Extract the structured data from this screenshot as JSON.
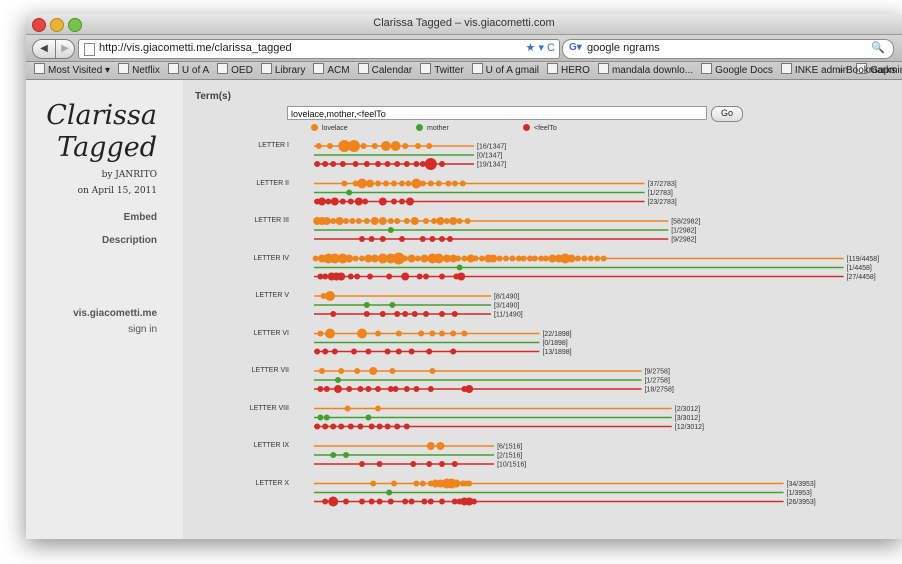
{
  "window": {
    "title": "Clarissa Tagged – vis.giacometti.com"
  },
  "toolbar": {
    "url": "http://vis.giacometti.me/clarissa_tagged",
    "search_engine": "Google",
    "search_query": "google ngrams",
    "back_label": "◀",
    "forward_label": "▶"
  },
  "bookmarks": [
    "Most Visited ▾",
    "Netflix",
    "U of A",
    "OED",
    "Library",
    "ACM",
    "Calendar",
    "Twitter",
    "U of A gmail",
    "HERO",
    "mandala downlo...",
    "Google Docs",
    "INKE admin",
    "Gapminder"
  ],
  "bookmarks_more": "» Bookmarks",
  "sidebar": {
    "title_line1": "Clarissa",
    "title_line2": "Tagged",
    "byline": "by JANRITO",
    "date": "on April 15, 2011",
    "embed": "Embed",
    "description": "Description",
    "site": "vis.giacometti.me",
    "signin": "sign in"
  },
  "search": {
    "label": "Term(s)",
    "value": "lovelace,mother,<feelTo",
    "go": "Go"
  },
  "colors": {
    "lovelace": "#f0841c",
    "mother": "#44a02e",
    "feelTo": "#d22b28"
  },
  "chart_data": {
    "type": "scatter",
    "legend": [
      "lovelace",
      "mother",
      "<feelTo"
    ],
    "letters": [
      {
        "label": "LETTER I",
        "total": 1347,
        "counts": {
          "lovelace": 16,
          "mother": 0,
          "feelTo": 19
        },
        "lovelace": [
          [
            0.03,
            3
          ],
          [
            0.1,
            3
          ],
          [
            0.19,
            6
          ],
          [
            0.25,
            6
          ],
          [
            0.31,
            3
          ],
          [
            0.38,
            3
          ],
          [
            0.45,
            5
          ],
          [
            0.51,
            5
          ],
          [
            0.57,
            3
          ],
          [
            0.65,
            3
          ],
          [
            0.72,
            3
          ]
        ],
        "mother": [],
        "feelTo": [
          [
            0.02,
            3
          ],
          [
            0.07,
            3
          ],
          [
            0.12,
            3
          ],
          [
            0.18,
            3
          ],
          [
            0.26,
            3
          ],
          [
            0.33,
            3
          ],
          [
            0.4,
            3
          ],
          [
            0.46,
            3
          ],
          [
            0.52,
            3
          ],
          [
            0.58,
            3
          ],
          [
            0.64,
            3
          ],
          [
            0.68,
            3
          ],
          [
            0.73,
            6
          ],
          [
            0.8,
            3
          ]
        ]
      },
      {
        "label": "LETTER II",
        "total": 2783,
        "counts": {
          "lovelace": 37,
          "mother": 1,
          "feelTo": 23
        },
        "lovelace": [
          [
            0.19,
            3
          ],
          [
            0.26,
            3
          ],
          [
            0.3,
            5
          ],
          [
            0.35,
            4
          ],
          [
            0.4,
            3
          ],
          [
            0.45,
            3
          ],
          [
            0.5,
            3
          ],
          [
            0.55,
            3
          ],
          [
            0.59,
            3
          ],
          [
            0.64,
            5
          ],
          [
            0.68,
            3
          ],
          [
            0.73,
            3
          ],
          [
            0.78,
            3
          ],
          [
            0.84,
            3
          ],
          [
            0.88,
            3
          ],
          [
            0.93,
            3
          ]
        ],
        "mother": [
          [
            0.22,
            3
          ]
        ],
        "feelTo": [
          [
            0.02,
            3
          ],
          [
            0.05,
            4
          ],
          [
            0.09,
            3
          ],
          [
            0.13,
            4
          ],
          [
            0.18,
            3
          ],
          [
            0.23,
            3
          ],
          [
            0.28,
            4
          ],
          [
            0.32,
            3
          ],
          [
            0.43,
            4
          ],
          [
            0.5,
            3
          ],
          [
            0.55,
            3
          ],
          [
            0.6,
            4
          ]
        ]
      },
      {
        "label": "LETTER III",
        "total": 2982,
        "counts": {
          "lovelace": 58,
          "mother": 1,
          "feelTo": 9
        },
        "lovelace": [
          [
            0.02,
            4
          ],
          [
            0.05,
            4
          ],
          [
            0.08,
            4
          ],
          [
            0.12,
            3
          ],
          [
            0.16,
            4
          ],
          [
            0.2,
            3
          ],
          [
            0.24,
            3
          ],
          [
            0.28,
            3
          ],
          [
            0.33,
            3
          ],
          [
            0.38,
            4
          ],
          [
            0.43,
            4
          ],
          [
            0.48,
            3
          ],
          [
            0.52,
            3
          ],
          [
            0.58,
            3
          ],
          [
            0.63,
            4
          ],
          [
            0.7,
            3
          ],
          [
            0.75,
            3
          ],
          [
            0.79,
            4
          ],
          [
            0.83,
            3
          ],
          [
            0.87,
            4
          ],
          [
            0.91,
            3
          ],
          [
            0.96,
            3
          ]
        ],
        "mother": [
          [
            0.48,
            3
          ]
        ],
        "feelTo": [
          [
            0.3,
            3
          ],
          [
            0.36,
            3
          ],
          [
            0.43,
            3
          ],
          [
            0.55,
            3
          ],
          [
            0.68,
            3
          ],
          [
            0.74,
            3
          ],
          [
            0.8,
            3
          ],
          [
            0.85,
            3
          ]
        ]
      },
      {
        "label": "LETTER IV",
        "total": 4458,
        "counts": {
          "lovelace": 119,
          "mother": 1,
          "feelTo": 27
        },
        "lovelace": [
          [
            0.01,
            3
          ],
          [
            0.05,
            4
          ],
          [
            0.09,
            5
          ],
          [
            0.13,
            5
          ],
          [
            0.18,
            5
          ],
          [
            0.22,
            4
          ],
          [
            0.26,
            3
          ],
          [
            0.3,
            3
          ],
          [
            0.34,
            4
          ],
          [
            0.38,
            4
          ],
          [
            0.43,
            5
          ],
          [
            0.48,
            5
          ],
          [
            0.53,
            6
          ],
          [
            0.57,
            3
          ],
          [
            0.61,
            4
          ],
          [
            0.65,
            3
          ],
          [
            0.69,
            4
          ],
          [
            0.74,
            5
          ],
          [
            0.78,
            5
          ],
          [
            0.83,
            4
          ],
          [
            0.87,
            4
          ],
          [
            0.9,
            3
          ],
          [
            0.94,
            3
          ],
          [
            0.98,
            4
          ],
          [
            1.01,
            3
          ],
          [
            1.05,
            3
          ],
          [
            1.09,
            4
          ],
          [
            1.12,
            4
          ],
          [
            1.16,
            3
          ],
          [
            1.2,
            3
          ],
          [
            1.24,
            3
          ],
          [
            1.28,
            3
          ],
          [
            1.31,
            3
          ],
          [
            1.35,
            3
          ],
          [
            1.38,
            3
          ],
          [
            1.42,
            3
          ],
          [
            1.45,
            3
          ],
          [
            1.49,
            4
          ],
          [
            1.53,
            4
          ],
          [
            1.57,
            5
          ],
          [
            1.61,
            4
          ],
          [
            1.65,
            3
          ],
          [
            1.69,
            3
          ],
          [
            1.73,
            3
          ],
          [
            1.77,
            3
          ],
          [
            1.81,
            3
          ]
        ],
        "mother": [
          [
            0.91,
            3
          ]
        ],
        "feelTo": [
          [
            0.04,
            3
          ],
          [
            0.07,
            3
          ],
          [
            0.11,
            4
          ],
          [
            0.14,
            4
          ],
          [
            0.17,
            4
          ],
          [
            0.23,
            3
          ],
          [
            0.27,
            3
          ],
          [
            0.35,
            3
          ],
          [
            0.47,
            3
          ],
          [
            0.57,
            4
          ],
          [
            0.66,
            3
          ],
          [
            0.7,
            3
          ],
          [
            0.8,
            3
          ],
          [
            0.89,
            3
          ],
          [
            0.92,
            4
          ]
        ]
      },
      {
        "label": "LETTER V",
        "total": 1490,
        "counts": {
          "lovelace": 8,
          "mother": 3,
          "feelTo": 11
        },
        "lovelace": [
          [
            0.06,
            3
          ],
          [
            0.1,
            5
          ]
        ],
        "mother": [
          [
            0.33,
            3
          ],
          [
            0.49,
            3
          ]
        ],
        "feelTo": [
          [
            0.12,
            3
          ],
          [
            0.33,
            3
          ],
          [
            0.43,
            3
          ],
          [
            0.52,
            3
          ],
          [
            0.57,
            3
          ],
          [
            0.63,
            3
          ],
          [
            0.7,
            3
          ],
          [
            0.8,
            3
          ],
          [
            0.88,
            3
          ]
        ]
      },
      {
        "label": "LETTER VI",
        "total": 1898,
        "counts": {
          "lovelace": 22,
          "mother": 0,
          "feelTo": 13
        },
        "lovelace": [
          [
            0.04,
            3
          ],
          [
            0.1,
            5
          ],
          [
            0.3,
            5
          ],
          [
            0.4,
            3
          ],
          [
            0.53,
            3
          ],
          [
            0.67,
            3
          ],
          [
            0.74,
            3
          ],
          [
            0.8,
            3
          ],
          [
            0.87,
            3
          ],
          [
            0.94,
            3
          ]
        ],
        "mother": [],
        "feelTo": [
          [
            0.02,
            3
          ],
          [
            0.07,
            3
          ],
          [
            0.13,
            3
          ],
          [
            0.25,
            3
          ],
          [
            0.34,
            3
          ],
          [
            0.46,
            3
          ],
          [
            0.53,
            3
          ],
          [
            0.61,
            3
          ],
          [
            0.72,
            3
          ],
          [
            0.87,
            3
          ]
        ]
      },
      {
        "label": "LETTER VII",
        "total": 2758,
        "counts": {
          "lovelace": 9,
          "mother": 1,
          "feelTo": 18
        },
        "lovelace": [
          [
            0.05,
            3
          ],
          [
            0.17,
            3
          ],
          [
            0.27,
            3
          ],
          [
            0.37,
            4
          ],
          [
            0.49,
            3
          ],
          [
            0.74,
            3
          ]
        ],
        "mother": [
          [
            0.15,
            3
          ]
        ],
        "feelTo": [
          [
            0.04,
            3
          ],
          [
            0.08,
            3
          ],
          [
            0.15,
            4
          ],
          [
            0.22,
            3
          ],
          [
            0.29,
            3
          ],
          [
            0.34,
            3
          ],
          [
            0.4,
            3
          ],
          [
            0.48,
            3
          ],
          [
            0.51,
            3
          ],
          [
            0.58,
            3
          ],
          [
            0.64,
            3
          ],
          [
            0.73,
            3
          ],
          [
            0.94,
            3
          ],
          [
            0.97,
            4
          ]
        ]
      },
      {
        "label": "LETTER VIII",
        "total": 3012,
        "counts": {
          "lovelace": 2,
          "mother": 3,
          "feelTo": 12
        },
        "lovelace": [
          [
            0.21,
            3
          ],
          [
            0.4,
            3
          ]
        ],
        "mother": [
          [
            0.04,
            3
          ],
          [
            0.08,
            3
          ],
          [
            0.34,
            3
          ]
        ],
        "feelTo": [
          [
            0.02,
            3
          ],
          [
            0.07,
            3
          ],
          [
            0.12,
            3
          ],
          [
            0.17,
            3
          ],
          [
            0.23,
            3
          ],
          [
            0.29,
            3
          ],
          [
            0.36,
            3
          ],
          [
            0.41,
            3
          ],
          [
            0.46,
            3
          ],
          [
            0.52,
            3
          ],
          [
            0.58,
            3
          ]
        ]
      },
      {
        "label": "LETTER IX",
        "total": 1516,
        "counts": {
          "lovelace": 6,
          "mother": 2,
          "feelTo": 10
        },
        "lovelace": [
          [
            0.73,
            4
          ],
          [
            0.79,
            4
          ]
        ],
        "mother": [
          [
            0.12,
            3
          ],
          [
            0.2,
            3
          ]
        ],
        "feelTo": [
          [
            0.3,
            3
          ],
          [
            0.41,
            3
          ],
          [
            0.62,
            3
          ],
          [
            0.72,
            3
          ],
          [
            0.8,
            3
          ],
          [
            0.88,
            3
          ]
        ]
      },
      {
        "label": "LETTER X",
        "total": 3953,
        "counts": {
          "lovelace": 34,
          "mother": 1,
          "feelTo": 26
        },
        "lovelace": [
          [
            0.37,
            3
          ],
          [
            0.5,
            3
          ],
          [
            0.64,
            3
          ],
          [
            0.68,
            3
          ],
          [
            0.73,
            3
          ],
          [
            0.76,
            4
          ],
          [
            0.79,
            4
          ],
          [
            0.83,
            5
          ],
          [
            0.86,
            5
          ],
          [
            0.89,
            4
          ],
          [
            0.93,
            3
          ],
          [
            0.95,
            3
          ],
          [
            0.97,
            3
          ]
        ],
        "mother": [
          [
            0.47,
            3
          ]
        ],
        "feelTo": [
          [
            0.07,
            3
          ],
          [
            0.12,
            5
          ],
          [
            0.2,
            3
          ],
          [
            0.3,
            3
          ],
          [
            0.36,
            3
          ],
          [
            0.41,
            3
          ],
          [
            0.48,
            3
          ],
          [
            0.57,
            3
          ],
          [
            0.61,
            3
          ],
          [
            0.69,
            3
          ],
          [
            0.73,
            3
          ],
          [
            0.8,
            3
          ],
          [
            0.88,
            3
          ],
          [
            0.91,
            3
          ],
          [
            0.94,
            4
          ],
          [
            0.97,
            4
          ],
          [
            1.0,
            3
          ]
        ]
      }
    ]
  }
}
